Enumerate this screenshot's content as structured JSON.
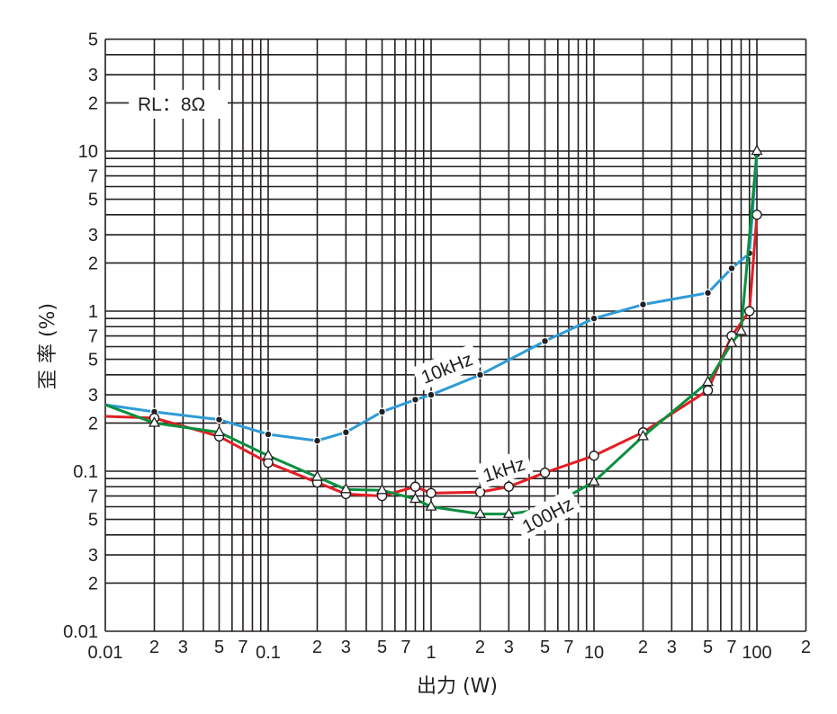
{
  "chart_data": {
    "type": "line",
    "title": "",
    "annotation": "RL：8Ω",
    "xlabel": "出力 (W)",
    "ylabel": "歪 率 (%)",
    "xscale": "log",
    "yscale": "log",
    "xlim": [
      0.01,
      200
    ],
    "ylim": [
      0.01,
      50
    ],
    "grid": true,
    "x_tick_labels": [
      {
        "value": 0.01,
        "label": "0.01"
      },
      {
        "value": 0.02,
        "label": "2"
      },
      {
        "value": 0.03,
        "label": "3"
      },
      {
        "value": 0.05,
        "label": "5"
      },
      {
        "value": 0.07,
        "label": "7"
      },
      {
        "value": 0.1,
        "label": "0.1"
      },
      {
        "value": 0.2,
        "label": "2"
      },
      {
        "value": 0.3,
        "label": "3"
      },
      {
        "value": 0.5,
        "label": "5"
      },
      {
        "value": 0.7,
        "label": "7"
      },
      {
        "value": 1,
        "label": "1"
      },
      {
        "value": 2,
        "label": "2"
      },
      {
        "value": 3,
        "label": "3"
      },
      {
        "value": 5,
        "label": "5"
      },
      {
        "value": 7,
        "label": "7"
      },
      {
        "value": 10,
        "label": "10"
      },
      {
        "value": 20,
        "label": "2"
      },
      {
        "value": 30,
        "label": "3"
      },
      {
        "value": 50,
        "label": "5"
      },
      {
        "value": 70,
        "label": "7"
      },
      {
        "value": 100,
        "label": "100"
      },
      {
        "value": 200,
        "label": "2"
      }
    ],
    "y_tick_labels": [
      {
        "value": 0.01,
        "label": "0.01"
      },
      {
        "value": 0.02,
        "label": "2"
      },
      {
        "value": 0.03,
        "label": "3"
      },
      {
        "value": 0.05,
        "label": "5"
      },
      {
        "value": 0.07,
        "label": "7"
      },
      {
        "value": 0.1,
        "label": "0.1"
      },
      {
        "value": 0.2,
        "label": "2"
      },
      {
        "value": 0.3,
        "label": "3"
      },
      {
        "value": 0.5,
        "label": "5"
      },
      {
        "value": 0.7,
        "label": "7"
      },
      {
        "value": 1,
        "label": "1"
      },
      {
        "value": 2,
        "label": "2"
      },
      {
        "value": 3,
        "label": "3"
      },
      {
        "value": 5,
        "label": "5"
      },
      {
        "value": 7,
        "label": "7"
      },
      {
        "value": 10,
        "label": "10"
      },
      {
        "value": 20,
        "label": "2"
      },
      {
        "value": 30,
        "label": "3"
      },
      {
        "value": 50,
        "label": "5"
      }
    ],
    "series": [
      {
        "name": "10kHz",
        "color": "#2e9bd6",
        "marker": "filled-circle",
        "x": [
          0.01,
          0.02,
          0.05,
          0.1,
          0.2,
          0.3,
          0.5,
          0.8,
          1,
          2,
          5,
          10,
          20,
          50,
          70,
          90,
          100
        ],
        "y": [
          0.26,
          0.235,
          0.21,
          0.17,
          0.155,
          0.175,
          0.235,
          0.28,
          0.3,
          0.4,
          0.65,
          0.9,
          1.1,
          1.3,
          1.85,
          2.3,
          9.5
        ]
      },
      {
        "name": "1kHz",
        "color": "#e31e24",
        "marker": "open-circle",
        "x": [
          0.01,
          0.02,
          0.05,
          0.1,
          0.2,
          0.3,
          0.5,
          0.8,
          1,
          2,
          3,
          5,
          10,
          20,
          50,
          70,
          90,
          100
        ],
        "y": [
          0.22,
          0.215,
          0.165,
          0.113,
          0.085,
          0.072,
          0.07,
          0.08,
          0.073,
          0.074,
          0.08,
          0.098,
          0.125,
          0.175,
          0.32,
          0.7,
          1.0,
          4.0
        ]
      },
      {
        "name": "100Hz",
        "color": "#0b8f3e",
        "marker": "open-triangle",
        "x": [
          0.01,
          0.02,
          0.05,
          0.1,
          0.2,
          0.3,
          0.5,
          0.8,
          1,
          2,
          3,
          5,
          10,
          20,
          50,
          70,
          80,
          100
        ],
        "y": [
          0.26,
          0.2,
          0.175,
          0.125,
          0.092,
          0.077,
          0.076,
          0.067,
          0.06,
          0.054,
          0.054,
          0.058,
          0.086,
          0.165,
          0.36,
          0.63,
          0.75,
          10.0
        ]
      }
    ],
    "series_labels": [
      {
        "text": "10kHz",
        "x": 1.25,
        "y": 0.44,
        "angle": -22
      },
      {
        "text": "1kHz",
        "x": 2.8,
        "y": 0.102,
        "angle": -18
      },
      {
        "text": "100Hz",
        "x": 5.2,
        "y": 0.053,
        "angle": -28
      }
    ]
  }
}
